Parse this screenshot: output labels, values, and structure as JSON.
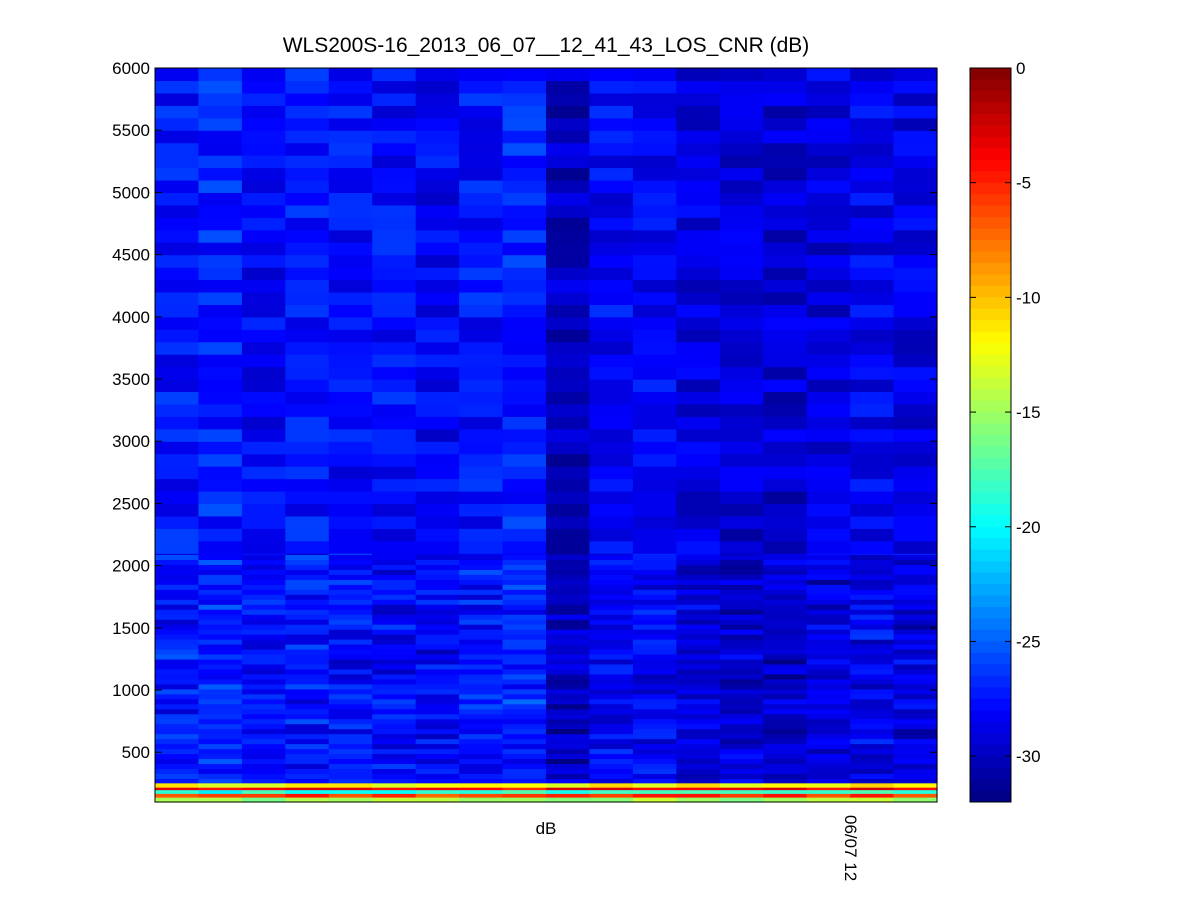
{
  "chart_data": {
    "type": "heatmap",
    "title": "WLS200S-16_2013_06_07__12_41_43_LOS_CNR (dB)",
    "xlabel": "dB",
    "x_tick_labels": [
      "06/07 12"
    ],
    "ylabel": "",
    "y_ticks": [
      500,
      1000,
      1500,
      2000,
      2500,
      3000,
      3500,
      4000,
      4500,
      5000,
      5500,
      6000
    ],
    "ylim": [
      100,
      6000
    ],
    "columns": 18,
    "colorbar": {
      "colormap": "jet",
      "range": [
        -32,
        0
      ],
      "ticks": [
        0,
        -5,
        -10,
        -15,
        -20,
        -25,
        -30
      ]
    },
    "description_of_values": {
      "bulk_range_db": [
        -31,
        -25
      ],
      "low_range_gate_rows": [
        {
          "range_from": 100,
          "range_to": 140,
          "value_db": -15
        },
        {
          "range_from": 140,
          "range_to": 170,
          "value_db": -6
        },
        {
          "range_from": 170,
          "range_to": 200,
          "value_db": -19
        },
        {
          "range_from": 200,
          "range_to": 220,
          "value_db": -4
        },
        {
          "range_from": 220,
          "range_to": 250,
          "value_db": -12
        }
      ],
      "column_profile_db": [
        -27.5,
        -27,
        -28,
        -27.5,
        -27.8,
        -27.8,
        -28.2,
        -27.6,
        -27,
        -30,
        -28,
        -28,
        -29,
        -29.5,
        -29.5,
        -29,
        -28.5,
        -29
      ]
    },
    "grid": false,
    "legend": "none"
  }
}
